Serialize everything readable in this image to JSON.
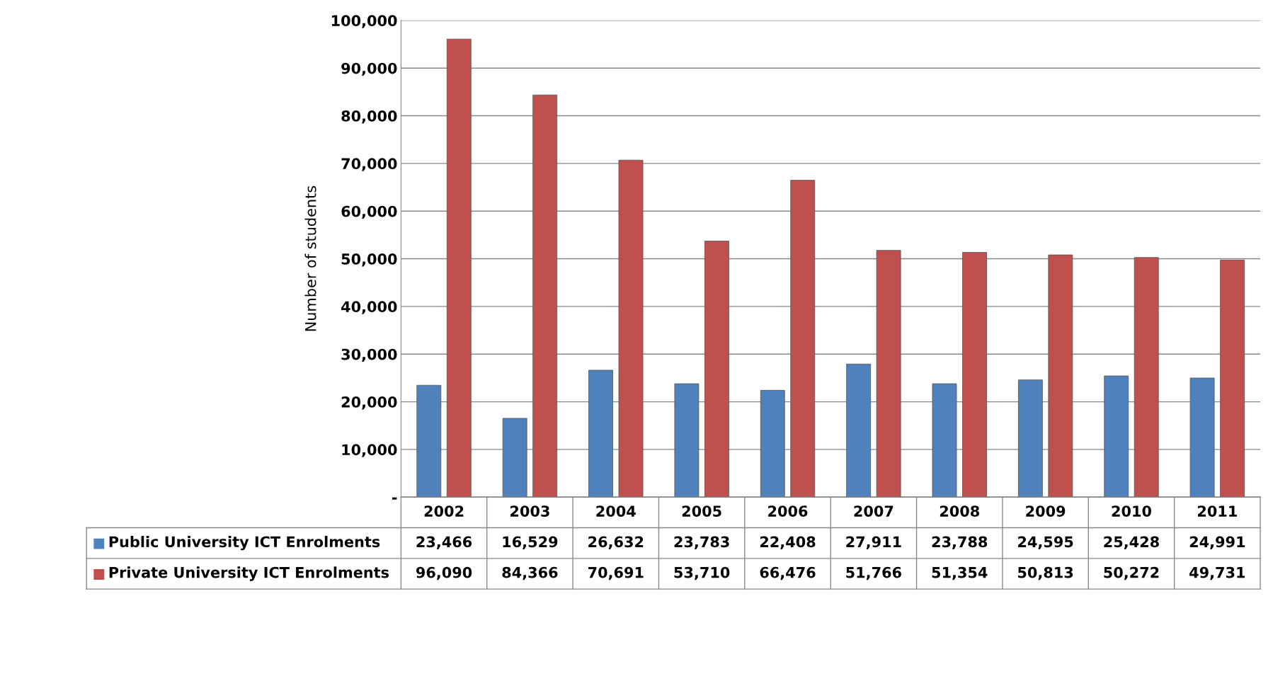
{
  "chart_data": {
    "type": "bar",
    "ylabel": "Number of students",
    "categories": [
      "2002",
      "2003",
      "2004",
      "2005",
      "2006",
      "2007",
      "2008",
      "2009",
      "2010",
      "2011"
    ],
    "series": [
      {
        "name": "Public University ICT Enrolments",
        "color": "#4f81bd",
        "values": [
          23466,
          16529,
          26632,
          23783,
          22408,
          27911,
          23788,
          24595,
          25428,
          24991
        ],
        "value_labels": [
          "23,466",
          "16,529",
          "26,632",
          "23,783",
          "22,408",
          "27,911",
          "23,788",
          "24,595",
          "25,428",
          "24,991"
        ]
      },
      {
        "name": "Private University ICT Enrolments",
        "color": "#c0504d",
        "values": [
          96090,
          84366,
          70691,
          53710,
          66476,
          51766,
          51354,
          50813,
          50272,
          49731
        ],
        "value_labels": [
          "96,090",
          "84,366",
          "70,691",
          "53,710",
          "66,476",
          "51,766",
          "51,354",
          "50,813",
          "50,272",
          "49,731"
        ]
      }
    ],
    "ylim": [
      0,
      100000
    ],
    "yticks": [
      {
        "value": 0,
        "label": "-"
      },
      {
        "value": 10000,
        "label": "10,000"
      },
      {
        "value": 20000,
        "label": "20,000"
      },
      {
        "value": 30000,
        "label": "30,000"
      },
      {
        "value": 40000,
        "label": "40,000"
      },
      {
        "value": 50000,
        "label": "50,000"
      },
      {
        "value": 60000,
        "label": "60,000"
      },
      {
        "value": 70000,
        "label": "70,000"
      },
      {
        "value": 80000,
        "label": "80,000"
      },
      {
        "value": 90000,
        "label": "90,000"
      },
      {
        "value": 100000,
        "label": "100,000"
      }
    ],
    "grid": "y",
    "legend": "bottom"
  }
}
